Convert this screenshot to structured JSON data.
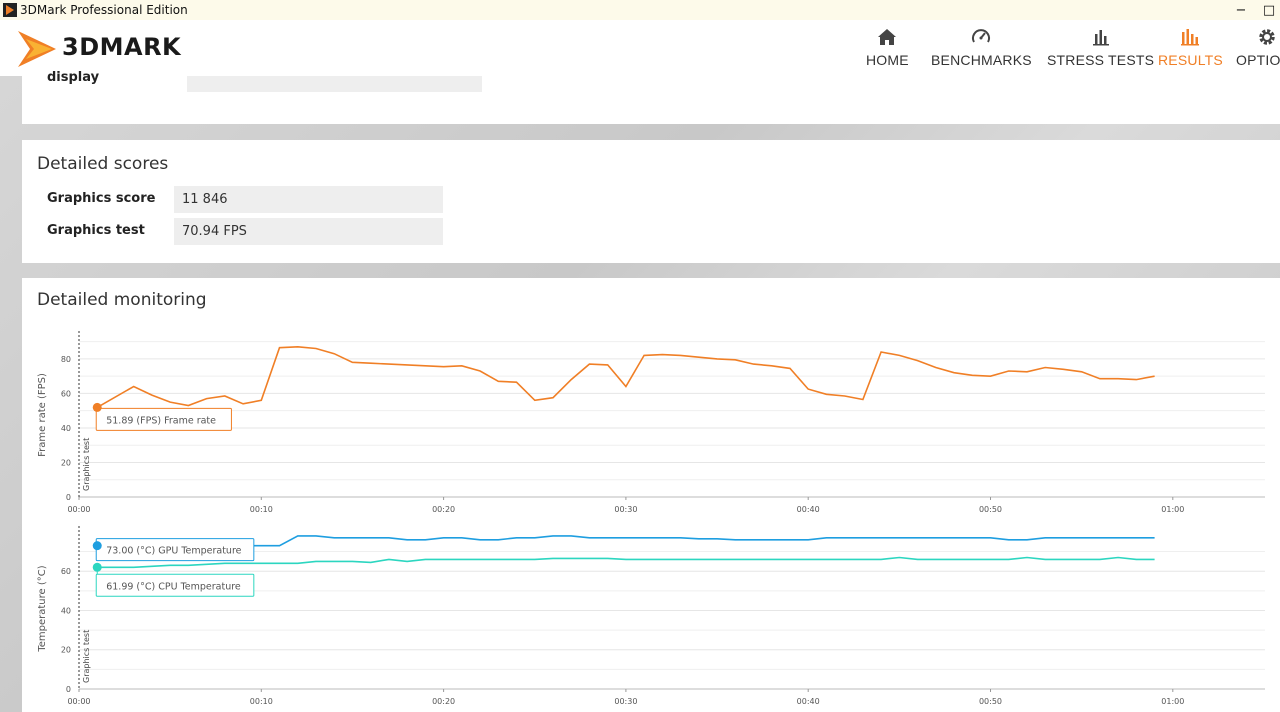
{
  "window": {
    "title": "3DMark Professional Edition",
    "minimize_label": "−",
    "restore_label": "□"
  },
  "header": {
    "logo_text": "3DMARK",
    "nav": [
      {
        "label": "HOME",
        "icon": "home-icon"
      },
      {
        "label": "BENCHMARKS",
        "icon": "gauge-icon"
      },
      {
        "label": "STRESS TESTS",
        "icon": "bar-chart-icon"
      },
      {
        "label": "RESULTS",
        "icon": "results-icon",
        "active": true
      },
      {
        "label": "OPTIONS",
        "icon": "gear-icon"
      }
    ],
    "accent": "#f07f26"
  },
  "top_card": {
    "label": "display",
    "value": ""
  },
  "detailed_scores": {
    "title": "Detailed scores",
    "rows": [
      {
        "label": "Graphics score",
        "value": "11 846"
      },
      {
        "label": "Graphics test",
        "value": "70.94 FPS"
      }
    ]
  },
  "detailed_monitoring": {
    "title": "Detailed monitoring"
  },
  "chart_data": [
    {
      "type": "line",
      "ylabel": "Frame rate (FPS)",
      "ylim": [
        0,
        95
      ],
      "yticks": [
        0,
        20,
        40,
        60,
        80
      ],
      "xlim": [
        0,
        65
      ],
      "xticks": [
        "00:00",
        "00:10",
        "00:20",
        "00:30",
        "00:40",
        "00:50",
        "01:00"
      ],
      "grid": true,
      "marker_label": "Graphics test",
      "series": [
        {
          "name": "Frame rate",
          "color": "#f07f26",
          "tooltip": "51.89 (FPS) Frame rate",
          "x": [
            1,
            3,
            4,
            5,
            6,
            7,
            8,
            9,
            10,
            11,
            12,
            13,
            14,
            15,
            16,
            17,
            18,
            19,
            20,
            21,
            22,
            23,
            24,
            25,
            26,
            27,
            28,
            29,
            30,
            31,
            32,
            33,
            34,
            35,
            36,
            37,
            38,
            39,
            40,
            41,
            42,
            43,
            44,
            45,
            46,
            47,
            48,
            49,
            50,
            51,
            52,
            53,
            54,
            55,
            56,
            57,
            58,
            59
          ],
          "values": [
            51.9,
            64,
            59,
            55,
            53,
            57,
            58.5,
            54,
            56,
            86.5,
            87,
            86,
            83,
            78,
            77.5,
            77,
            76.5,
            76,
            75.5,
            76,
            73,
            67,
            66.5,
            56,
            57.5,
            68,
            77,
            76.5,
            64,
            82,
            82.5,
            82,
            81,
            80,
            79.5,
            77,
            76,
            74.5,
            62.5,
            59.5,
            58.5,
            56.5,
            84,
            82,
            79,
            75,
            72,
            70.5,
            70,
            73,
            72.5,
            75,
            74,
            72.5,
            68.5,
            68.5,
            68,
            70
          ]
        }
      ]
    },
    {
      "type": "line",
      "ylabel": "Temperature (°C)",
      "ylim": [
        0,
        82
      ],
      "yticks": [
        0,
        20,
        40,
        60
      ],
      "xlim": [
        0,
        65
      ],
      "xticks": [
        "00:00",
        "00:10",
        "00:20",
        "00:30",
        "00:40",
        "00:50",
        "01:00"
      ],
      "grid": true,
      "marker_label": "Graphics test",
      "series": [
        {
          "name": "GPU Temperature",
          "color": "#1e9ee0",
          "tooltip": "73.00 (°C) GPU Temperature",
          "x": [
            1,
            2,
            3,
            4,
            5,
            6,
            7,
            8,
            9,
            10,
            11,
            12,
            13,
            14,
            15,
            16,
            17,
            18,
            19,
            20,
            21,
            22,
            23,
            24,
            25,
            26,
            27,
            28,
            29,
            30,
            31,
            32,
            33,
            34,
            35,
            36,
            37,
            38,
            39,
            40,
            41,
            42,
            43,
            44,
            45,
            46,
            47,
            48,
            49,
            50,
            51,
            52,
            53,
            54,
            55,
            56,
            57,
            58,
            59
          ],
          "values": [
            73,
            73,
            73,
            73,
            73,
            73,
            73,
            73,
            73,
            73,
            73,
            78,
            78,
            77,
            77,
            77,
            77,
            76,
            76,
            77,
            77,
            76,
            76,
            77,
            77,
            78,
            78,
            77,
            77,
            77,
            77,
            77,
            77,
            76.5,
            76.5,
            76,
            76,
            76,
            76,
            76,
            77,
            77,
            77,
            77,
            77,
            77,
            77,
            77,
            77,
            77,
            76,
            76,
            77,
            77,
            77,
            77,
            77,
            77,
            77
          ]
        },
        {
          "name": "CPU Temperature",
          "color": "#2cd6c0",
          "tooltip": "61.99 (°C) CPU Temperature",
          "x": [
            1,
            2,
            3,
            4,
            5,
            6,
            7,
            8,
            9,
            10,
            11,
            12,
            13,
            14,
            15,
            16,
            17,
            18,
            19,
            20,
            21,
            22,
            23,
            24,
            25,
            26,
            27,
            28,
            29,
            30,
            31,
            32,
            33,
            34,
            35,
            36,
            37,
            38,
            39,
            40,
            41,
            42,
            43,
            44,
            45,
            46,
            47,
            48,
            49,
            50,
            51,
            52,
            53,
            54,
            55,
            56,
            57,
            58,
            59
          ],
          "values": [
            62,
            62,
            62,
            62.5,
            63,
            63,
            63.5,
            64,
            64,
            64,
            64,
            64,
            65,
            65,
            65,
            64.5,
            66,
            65,
            66,
            66,
            66,
            66,
            66,
            66,
            66,
            66.5,
            66.5,
            66.5,
            66.5,
            66,
            66,
            66,
            66,
            66,
            66,
            66,
            66,
            66,
            66,
            66,
            66,
            66,
            66,
            66,
            67,
            66,
            66,
            66,
            66,
            66,
            66,
            67,
            66,
            66,
            66,
            66,
            67,
            66,
            66
          ]
        }
      ]
    }
  ]
}
